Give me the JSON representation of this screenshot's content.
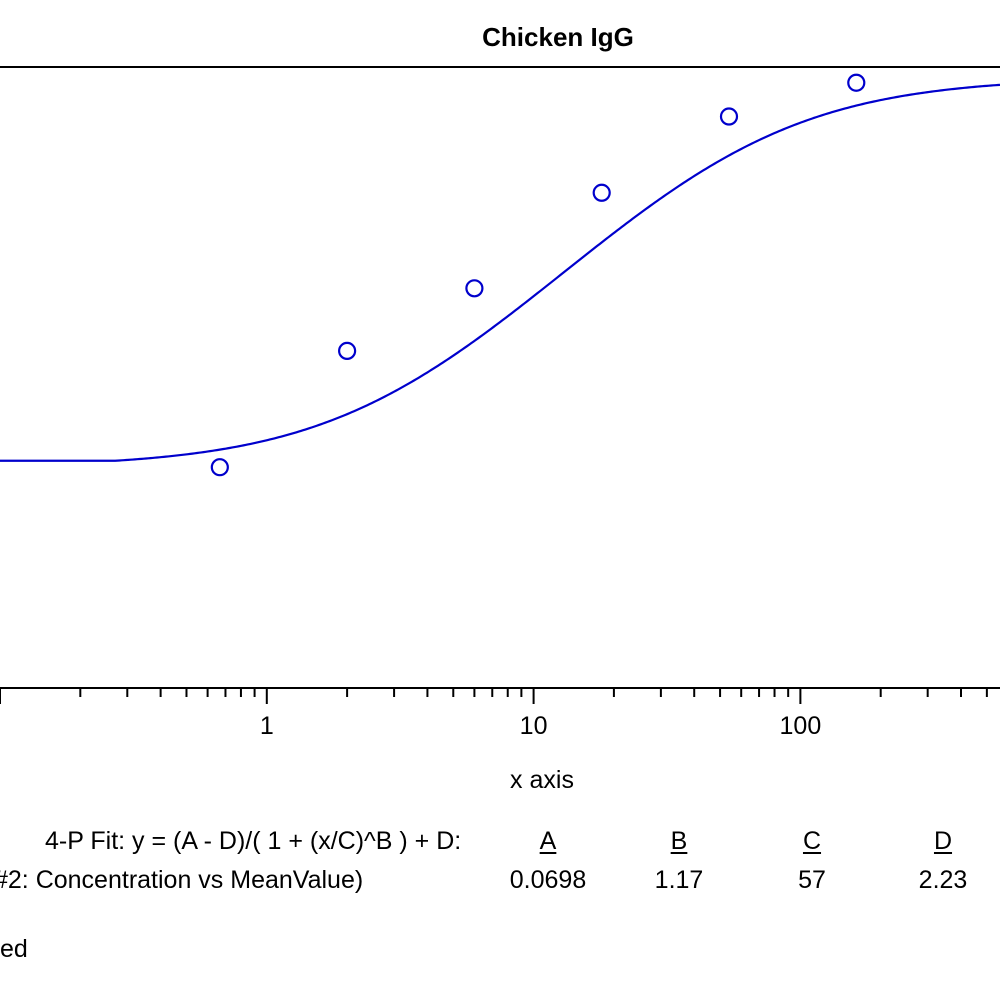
{
  "chart_data": {
    "type": "scatter",
    "title": "Chicken IgG",
    "xlabel": "x axis",
    "ylabel": "",
    "x_scale": "log",
    "xlim": [
      0.1,
      560
    ],
    "ylim": [
      0.0098,
      2.45
    ],
    "x_tick_labels": [
      "1",
      "10",
      "100"
    ],
    "x_ticks": [
      1,
      10,
      100
    ],
    "grid": false,
    "series": [
      {
        "x": [
          0.6667,
          2,
          6,
          18,
          54,
          162
        ],
        "y": [
          0.0698,
          0.1963,
          0.3425,
          0.8008,
          1.5776,
          2.1305
        ],
        "marker": "open-circle",
        "color": "#0000cc"
      }
    ],
    "fit": {
      "model": "4-P Fit",
      "A": 0.0698,
      "B": 1.17,
      "C": 57,
      "D": 2.23,
      "color": "#0000cc"
    }
  },
  "fit_table": {
    "equation": "4-P Fit: y = (A - D)/( 1 + (x/C)^B ) + D:",
    "headers": [
      "A",
      "B",
      "C",
      "D"
    ],
    "row_label": "#2: Concentration vs MeanValue)",
    "values": [
      "0.0698",
      "1.17",
      "57",
      "2.23"
    ]
  },
  "footer_text": "ed"
}
